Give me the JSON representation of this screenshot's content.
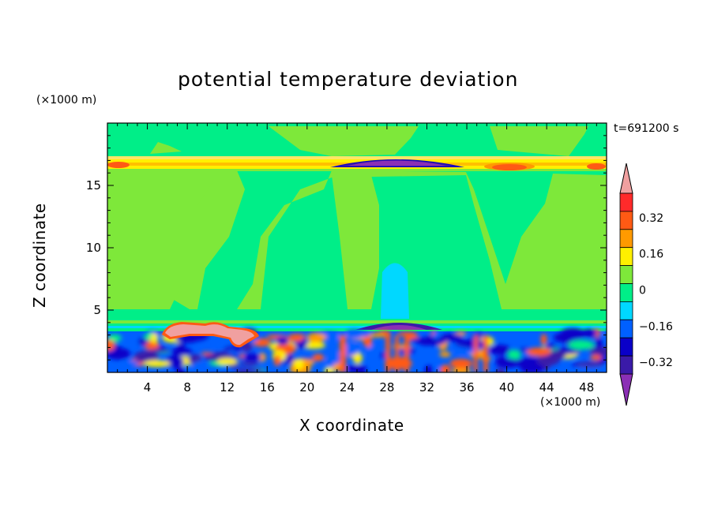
{
  "chart_data": {
    "type": "heatmap",
    "title": "potential temperature deviation",
    "xlabel": "X coordinate",
    "ylabel": "Z coordinate",
    "x_units": "(×1000 m)",
    "y_units": "(×1000 m)",
    "time_label": "t=691200 s",
    "xlim": [
      0,
      50
    ],
    "ylim": [
      0,
      20
    ],
    "x_ticks": [
      "4",
      "8",
      "12",
      "16",
      "20",
      "24",
      "28",
      "32",
      "36",
      "40",
      "44",
      "48"
    ],
    "y_ticks": [
      "5",
      "10",
      "15"
    ],
    "colorbar": {
      "tick_labels": [
        "0.32",
        "0.16",
        "0",
        "-0.16",
        "-0.32"
      ],
      "levels": [
        -0.4,
        -0.32,
        -0.24,
        -0.16,
        -0.08,
        0,
        0.08,
        0.16,
        0.24,
        0.32,
        0.4
      ],
      "colors": [
        "#8b2fb5",
        "#3a1aa8",
        "#0a00c8",
        "#0060ff",
        "#00d8ff",
        "#00ee88",
        "#7ee83a",
        "#fff000",
        "#ff9a00",
        "#ff5a14",
        "#ff2a2a",
        "#f0a0a0"
      ],
      "extend": "both"
    },
    "background_level": 0,
    "features": [
      {
        "x": [
          0,
          50
        ],
        "z": [
          16.4,
          17.2
        ],
        "level": 0.3
      },
      {
        "x": [
          22,
          35
        ],
        "z": [
          16.2,
          17.5
        ],
        "level": -0.4
      },
      {
        "x": [
          27,
          33
        ],
        "z": [
          4,
          9
        ],
        "level": -0.1
      },
      {
        "x": [
          0,
          50
        ],
        "z": [
          0,
          3.5
        ],
        "level": -0.32
      },
      {
        "x": [
          6,
          14
        ],
        "z": [
          2.8,
          4.2
        ],
        "level": 0.4
      }
    ]
  }
}
